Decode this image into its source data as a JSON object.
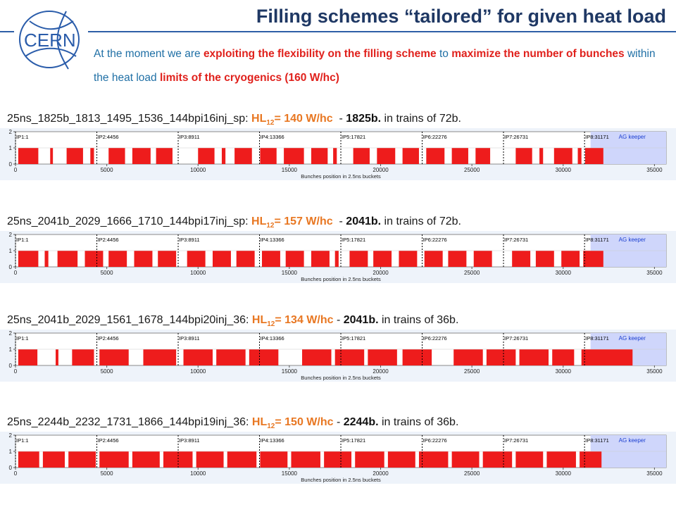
{
  "slide": {
    "title": "Filling schemes “tailored” for given heat load",
    "logo_text": "CERN",
    "intro": [
      {
        "text": "At the moment we are ",
        "emph": false
      },
      {
        "text": "exploiting the flexibility on the filling scheme",
        "emph": true
      },
      {
        "text": " to ",
        "emph": false
      },
      {
        "text": "maximize the number of bunches",
        "emph": true
      },
      {
        "text": " within the heat load ",
        "emph": false
      },
      {
        "text": "limits of the cryogenics  (160 W/hc)",
        "emph": true
      }
    ]
  },
  "plot_common": {
    "xlabel": "Bunches position in 2.5ns buckets",
    "x_ticks": [
      0,
      5000,
      10000,
      15000,
      20000,
      25000,
      30000,
      35000
    ],
    "y_ticks": [
      0,
      1,
      2
    ],
    "xlim": [
      0,
      35640
    ],
    "ylim": [
      0,
      2
    ],
    "ips": [
      {
        "label": "IP1:1",
        "pos": 1
      },
      {
        "label": "IP2:4456",
        "pos": 4456
      },
      {
        "label": "IP3:8911",
        "pos": 8911
      },
      {
        "label": "IP4:13366",
        "pos": 13366
      },
      {
        "label": "IP5:17821",
        "pos": 17821
      },
      {
        "label": "IP6:22276",
        "pos": 22276
      },
      {
        "label": "IP7:26731",
        "pos": 26731
      },
      {
        "label": "IP8:31171",
        "pos": 31171
      }
    ],
    "abort_gap_label": "AG keeper",
    "abort_gap_range": [
      31500,
      35640
    ],
    "bunch_color": "#ee1c1c",
    "abort_gap_color": "#cfd6fb"
  },
  "schemes": [
    {
      "name": "25ns_1825b_1813_1495_1536_144bpi16inj_sp:",
      "hl_label": "HL",
      "hl_sub": "12",
      "hl_value": "= 140 W/hc",
      "sep": "  - ",
      "bunches": "1825b.",
      "trains": " in trains of 72b.",
      "chart_data": {
        "type": "bar",
        "title": "",
        "xlabel": "Bunches position in 2.5ns buckets",
        "trains": [
          [
            150,
            1250
          ],
          [
            1900,
            2050
          ],
          [
            2800,
            3700
          ],
          [
            4100,
            4300
          ],
          [
            5100,
            6000
          ],
          [
            6400,
            7400
          ],
          [
            7700,
            8600
          ],
          [
            10000,
            10900
          ],
          [
            11300,
            11500
          ],
          [
            12000,
            12950
          ],
          [
            13400,
            14300
          ],
          [
            14700,
            15800
          ],
          [
            16200,
            17100
          ],
          [
            17400,
            17600
          ],
          [
            18500,
            19400
          ],
          [
            19800,
            20800
          ],
          [
            21200,
            22100
          ],
          [
            22500,
            23500
          ],
          [
            23900,
            24800
          ],
          [
            25200,
            26000
          ],
          [
            27400,
            28300
          ],
          [
            28700,
            28900
          ],
          [
            29500,
            30500
          ],
          [
            30800,
            31000
          ],
          [
            31200,
            32200
          ]
        ]
      }
    },
    {
      "name": "25ns_2041b_2029_1666_1710_144bpi17inj_sp:",
      "hl_label": "HL",
      "hl_sub": "12",
      "hl_value": "= 157 W/hc",
      "sep": "  - ",
      "bunches": "2041b.",
      "trains": " in trains of 72b.",
      "chart_data": {
        "type": "bar",
        "title": "",
        "xlabel": "Bunches position in 2.5ns buckets",
        "trains": [
          [
            150,
            1250
          ],
          [
            1600,
            1800
          ],
          [
            2300,
            3400
          ],
          [
            3800,
            4800
          ],
          [
            5100,
            6100
          ],
          [
            6500,
            7500
          ],
          [
            7800,
            8800
          ],
          [
            9400,
            10400
          ],
          [
            10800,
            11800
          ],
          [
            12100,
            13100
          ],
          [
            13500,
            14500
          ],
          [
            14800,
            15800
          ],
          [
            16200,
            17200
          ],
          [
            17500,
            17700
          ],
          [
            18300,
            19300
          ],
          [
            19600,
            20600
          ],
          [
            21000,
            22000
          ],
          [
            22400,
            23400
          ],
          [
            23700,
            24700
          ],
          [
            25100,
            26100
          ],
          [
            27200,
            28200
          ],
          [
            28500,
            29500
          ],
          [
            29900,
            30900
          ],
          [
            31100,
            32200
          ]
        ]
      }
    },
    {
      "name": "25ns_2041b_2029_1561_1678_144bpi20inj_36:",
      "hl_label": "HL",
      "hl_sub": "12",
      "hl_value": "= 134 W/hc",
      "sep": " - ",
      "bunches": "2041b.",
      "trains": " in trains of 36b.",
      "chart_data": {
        "type": "bar",
        "title": "",
        "xlabel": "Bunches position in 2.5ns buckets",
        "trains": [
          [
            150,
            1200
          ],
          [
            2200,
            2350
          ],
          [
            3100,
            4300
          ],
          [
            4600,
            6200
          ],
          [
            7000,
            8800
          ],
          [
            9200,
            10800
          ],
          [
            11000,
            12600
          ],
          [
            12800,
            14400
          ],
          [
            15700,
            17300
          ],
          [
            17500,
            19100
          ],
          [
            19300,
            20900
          ],
          [
            21200,
            22800
          ],
          [
            24000,
            25600
          ],
          [
            25800,
            27400
          ],
          [
            27600,
            29200
          ],
          [
            29400,
            30600
          ],
          [
            31000,
            33800
          ]
        ]
      }
    },
    {
      "name": "25ns_2244b_2232_1731_1866_144bpi19inj_36:",
      "hl_label": "HL",
      "hl_sub": "12",
      "hl_value": "= 150 W/hc",
      "sep": " - ",
      "bunches": "2244b.",
      "trains": " in trains of 36b.",
      "chart_data": {
        "type": "bar",
        "title": "",
        "xlabel": "Bunches position in 2.5ns buckets",
        "trains": [
          [
            150,
            1300
          ],
          [
            1500,
            2700
          ],
          [
            2900,
            4400
          ],
          [
            4600,
            6200
          ],
          [
            6400,
            7900
          ],
          [
            8100,
            9700
          ],
          [
            9900,
            11400
          ],
          [
            11600,
            13200
          ],
          [
            13400,
            14900
          ],
          [
            15100,
            16700
          ],
          [
            16900,
            18400
          ],
          [
            18600,
            20200
          ],
          [
            20400,
            21900
          ],
          [
            22100,
            23700
          ],
          [
            23900,
            25400
          ],
          [
            25600,
            27200
          ],
          [
            27400,
            28900
          ],
          [
            29100,
            30700
          ],
          [
            30900,
            32100
          ]
        ]
      }
    }
  ]
}
